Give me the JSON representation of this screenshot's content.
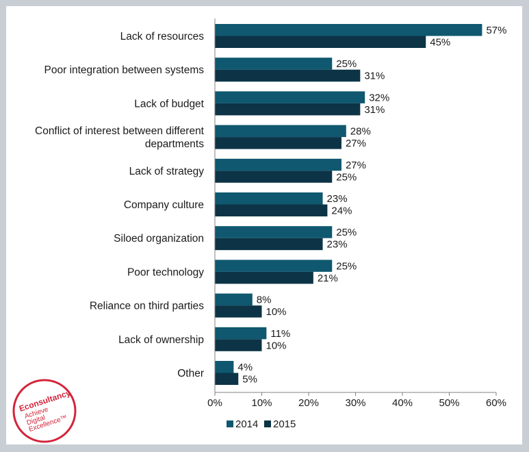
{
  "colors": {
    "series_2014": "#0f5870",
    "series_2015": "#0c3446",
    "axis": "#808080",
    "logo_red": "#d3243a",
    "frame_bg": "#c9ced4"
  },
  "logo": {
    "brand": "Econsultancy",
    "line1": "Achieve",
    "line2": "Digital",
    "line3": "Excellence™"
  },
  "chart_data": {
    "type": "bar",
    "orientation": "horizontal",
    "title": "",
    "xlabel": "",
    "ylabel": "",
    "xlim": [
      0,
      60
    ],
    "x_ticks": [
      0,
      10,
      20,
      30,
      40,
      50,
      60
    ],
    "x_tick_labels": [
      "0%",
      "10%",
      "20%",
      "30%",
      "40%",
      "50%",
      "60%"
    ],
    "grid": false,
    "legend_position": "bottom",
    "categories": [
      [
        "Lack of resources"
      ],
      [
        "Poor integration between systems"
      ],
      [
        "Lack of budget"
      ],
      [
        "Conflict of interest between different",
        "departments"
      ],
      [
        "Lack of strategy"
      ],
      [
        "Company culture"
      ],
      [
        "Siloed organization"
      ],
      [
        "Poor technology"
      ],
      [
        "Reliance on third parties"
      ],
      [
        "Lack of ownership"
      ],
      [
        "Other"
      ]
    ],
    "series": [
      {
        "name": "2014",
        "values": [
          57,
          25,
          32,
          28,
          27,
          23,
          25,
          25,
          8,
          11,
          4
        ],
        "labels": [
          "57%",
          "25%",
          "32%",
          "28%",
          "27%",
          "23%",
          "25%",
          "25%",
          "8%",
          "11%",
          "4%"
        ]
      },
      {
        "name": "2015",
        "values": [
          45,
          31,
          31,
          27,
          25,
          24,
          23,
          21,
          10,
          10,
          5
        ],
        "labels": [
          "45%",
          "31%",
          "31%",
          "27%",
          "25%",
          "24%",
          "23%",
          "21%",
          "10%",
          "10%",
          "5%"
        ]
      }
    ]
  }
}
